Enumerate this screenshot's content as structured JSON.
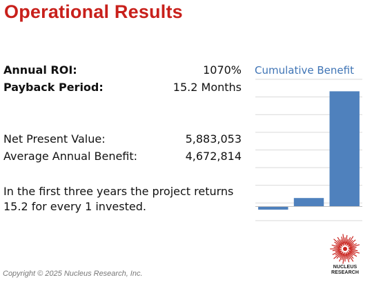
{
  "title": "Operational Results",
  "metrics": [
    {
      "label": "Annual ROI:",
      "value": "1070%"
    },
    {
      "label": "Payback Period:",
      "value": "15.2 Months"
    },
    {
      "label": "Net Present Value:",
      "value": "5,883,053"
    },
    {
      "label": "Average Annual Benefit:",
      "value": "4,672,814"
    }
  ],
  "summary": {
    "line1": "In the first three years the project returns",
    "line2": "15.2 for every 1 invested."
  },
  "chart_data": {
    "type": "bar",
    "title": "Cumulative Benefit",
    "categories": [
      "",
      "",
      ""
    ],
    "values": [
      -0.45,
      1.2,
      16.3
    ],
    "color": "#4f81bd",
    "ylim": [
      -2,
      18
    ],
    "grid": true
  },
  "footer": "Copyright © 2025 Nucleus Research, Inc.",
  "logo": {
    "line1": "NUCLEUS",
    "line2": "RESEARCH",
    "icon": "starburst-icon",
    "color": "#c8201b"
  }
}
